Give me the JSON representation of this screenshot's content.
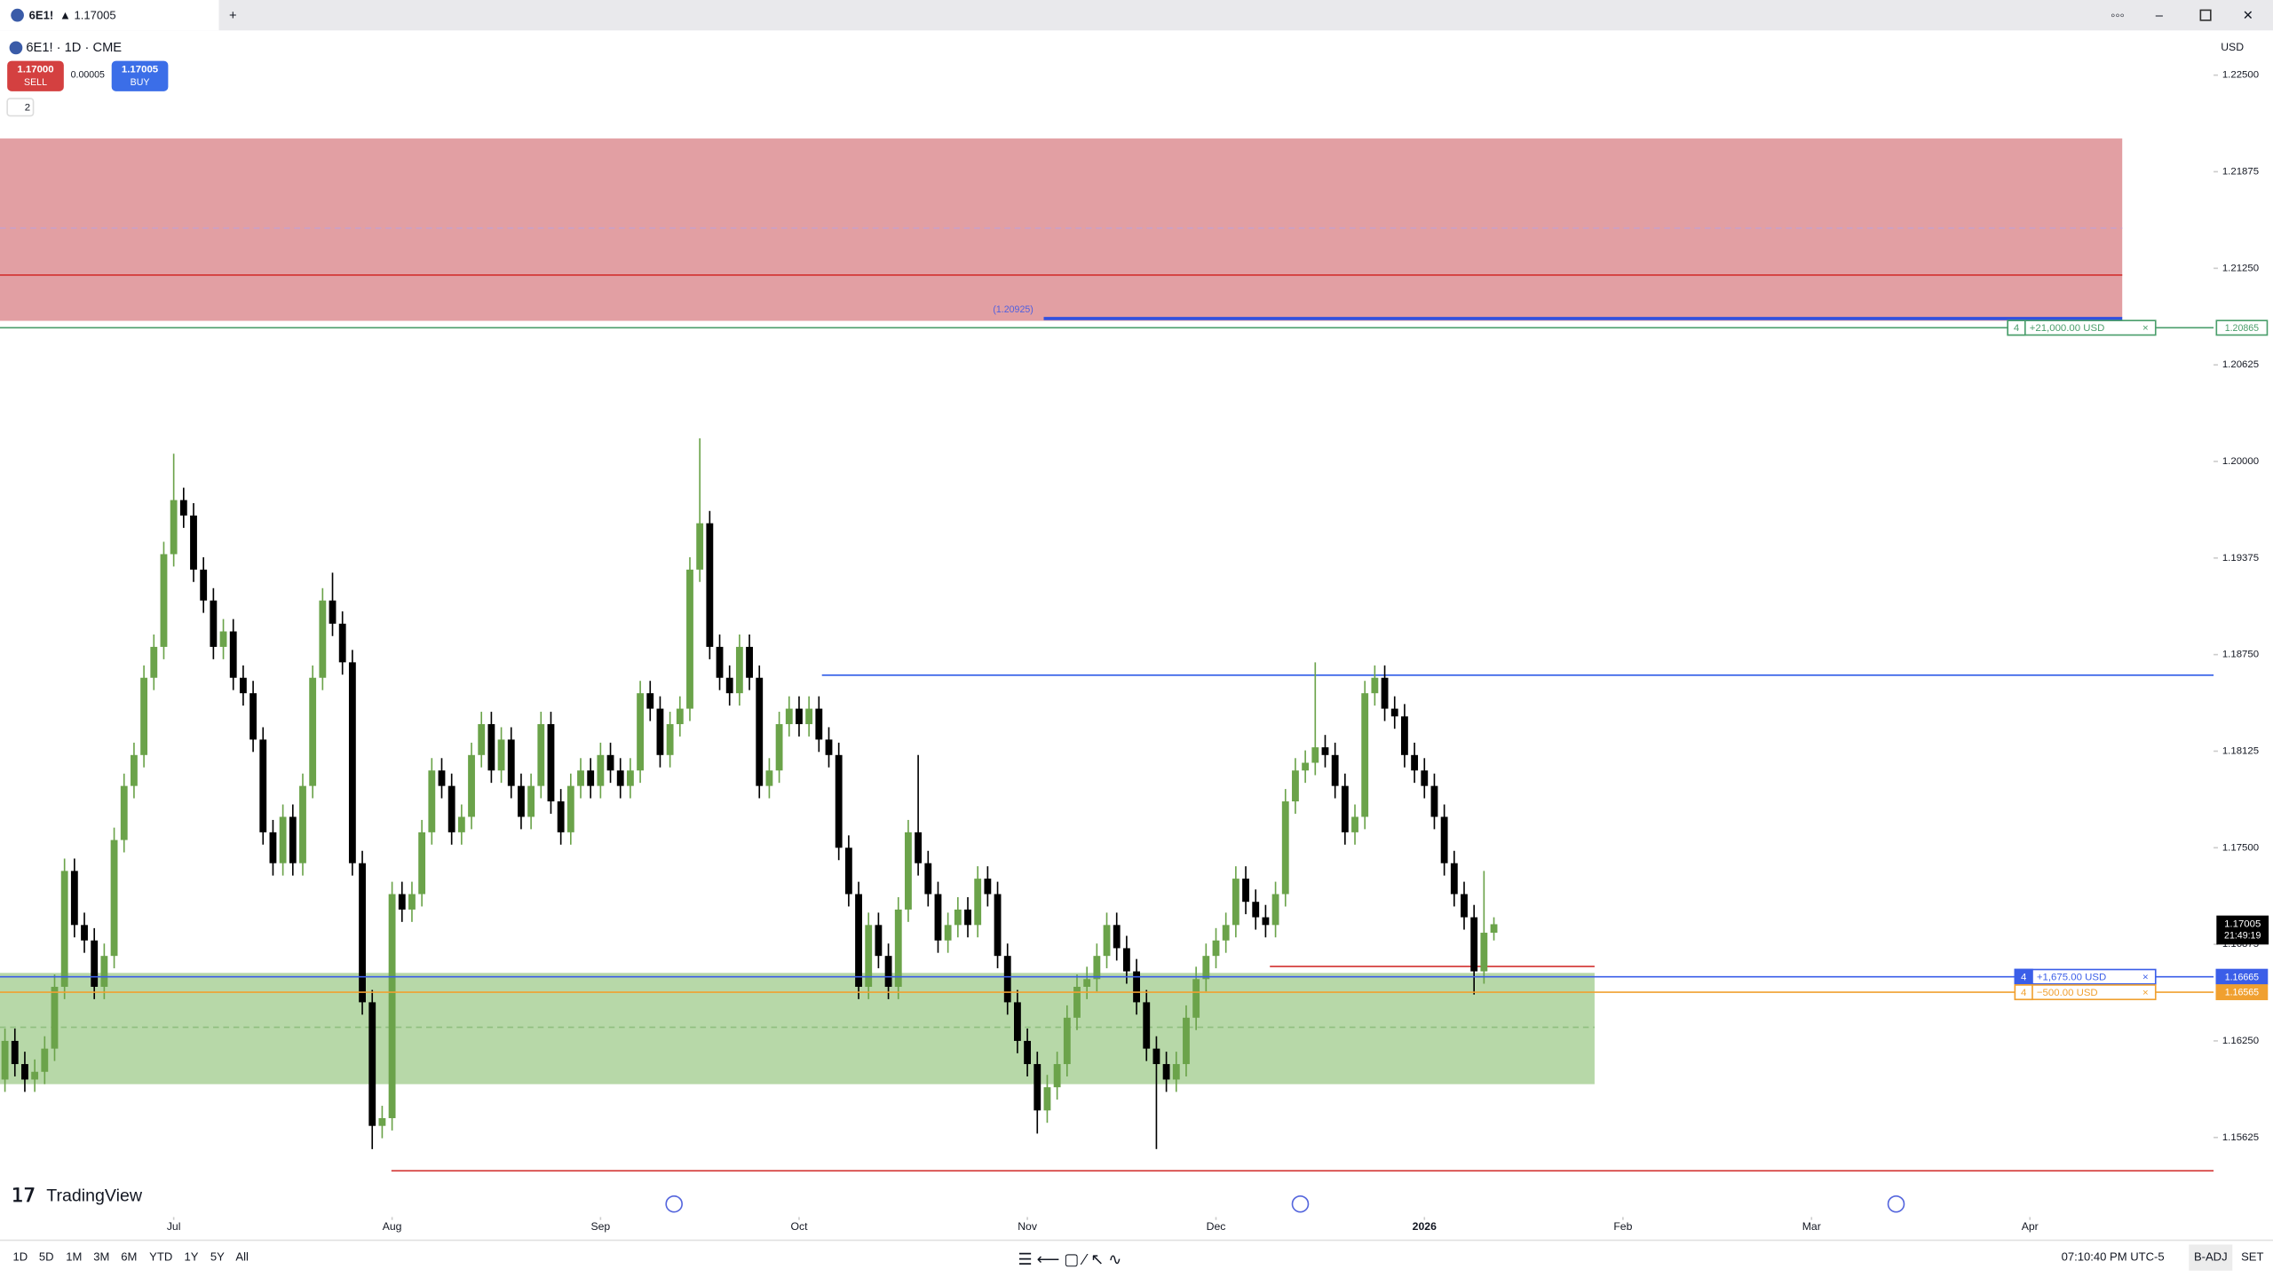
{
  "ui": {
    "tab_symbol": "6E1!",
    "tab_price": "▲ 1.17005",
    "legend": "6E1! · 1D · CME",
    "sell_price": "1.17000",
    "sell": "SELL",
    "spread": "0.00005",
    "buy_price": "1.17005",
    "buy": "BUY",
    "indicators_count": "2",
    "currency": "USD",
    "brand": "TradingView",
    "ranges": [
      "1D",
      "5D",
      "1M",
      "3M",
      "6M",
      "YTD",
      "1Y",
      "5Y",
      "All"
    ],
    "clock": "07:10:40 PM UTC-5",
    "adj": "B-ADJ",
    "session": "SET",
    "countdown": "21:49:19"
  },
  "chart_data": {
    "type": "candlestick",
    "up_color": "#6ba34a",
    "down_color": "#000000",
    "open": [
      1.16,
      1.1625,
      1.161,
      1.16,
      1.1605,
      1.162,
      1.166,
      1.1735,
      1.17,
      1.169,
      1.166,
      1.168,
      1.1755,
      1.179,
      1.181,
      1.186,
      1.188,
      1.194,
      1.1975,
      1.1965,
      1.193,
      1.191,
      1.188,
      1.189,
      1.186,
      1.185,
      1.182,
      1.176,
      1.174,
      1.177,
      1.174,
      1.179,
      1.186,
      1.191,
      1.1895,
      1.187,
      1.174,
      1.165,
      1.157,
      1.1575,
      1.172,
      1.171,
      1.172,
      1.176,
      1.18,
      1.179,
      1.176,
      1.177,
      1.181,
      1.183,
      1.18,
      1.182,
      1.179,
      1.177,
      1.179,
      1.183,
      1.178,
      1.176,
      1.179,
      1.18,
      1.179,
      1.181,
      1.18,
      1.179,
      1.18,
      1.185,
      1.184,
      1.181,
      1.183,
      1.184,
      1.193,
      1.196,
      1.188,
      1.186,
      1.185,
      1.188,
      1.186,
      1.179,
      1.18,
      1.183,
      1.184,
      1.183,
      1.184,
      1.182,
      1.181,
      1.175,
      1.172,
      1.166,
      1.17,
      1.168,
      1.166,
      1.171,
      1.176,
      1.174,
      1.172,
      1.169,
      1.17,
      1.171,
      1.17,
      1.173,
      1.172,
      1.168,
      1.165,
      1.1625,
      1.161,
      1.158,
      1.1595,
      1.161,
      1.164,
      1.166,
      1.1665,
      1.168,
      1.17,
      1.1685,
      1.167,
      1.165,
      1.162,
      1.161,
      1.16,
      1.161,
      1.164,
      1.1665,
      1.168,
      1.169,
      1.17,
      1.173,
      1.1715,
      1.1705,
      1.17,
      1.172,
      1.178,
      1.18,
      1.1805,
      1.1815,
      1.181,
      1.179,
      1.176,
      1.177,
      1.185,
      1.186,
      1.184,
      1.1835,
      1.181,
      1.18,
      1.179,
      1.177,
      1.174,
      1.172,
      1.1705,
      1.167,
      1.1695
    ],
    "high": [
      1.1633,
      1.1633,
      1.1618,
      1.1613,
      1.1628,
      1.1668,
      1.1743,
      1.1743,
      1.1708,
      1.1698,
      1.1688,
      1.1763,
      1.1798,
      1.1818,
      1.1868,
      1.1888,
      1.1948,
      1.2005,
      1.1983,
      1.1973,
      1.1938,
      1.1918,
      1.1898,
      1.1898,
      1.1868,
      1.1858,
      1.1828,
      1.1768,
      1.1778,
      1.1778,
      1.1798,
      1.1868,
      1.1918,
      1.1928,
      1.1903,
      1.1878,
      1.1748,
      1.1658,
      1.1583,
      1.1728,
      1.1728,
      1.1728,
      1.1768,
      1.1808,
      1.1808,
      1.1798,
      1.1778,
      1.1818,
      1.1838,
      1.1838,
      1.1828,
      1.1828,
      1.1798,
      1.1798,
      1.1838,
      1.1838,
      1.1788,
      1.1798,
      1.1808,
      1.1808,
      1.1818,
      1.1818,
      1.1808,
      1.1808,
      1.1858,
      1.1858,
      1.1848,
      1.1838,
      1.1848,
      1.1938,
      1.2015,
      1.1968,
      1.1888,
      1.1868,
      1.1888,
      1.1888,
      1.1868,
      1.1808,
      1.1838,
      1.1848,
      1.1848,
      1.1848,
      1.1848,
      1.1828,
      1.1818,
      1.1758,
      1.1728,
      1.1708,
      1.1708,
      1.1688,
      1.1718,
      1.1768,
      1.181,
      1.1748,
      1.1728,
      1.1708,
      1.1718,
      1.1718,
      1.1738,
      1.1738,
      1.1728,
      1.1688,
      1.1658,
      1.1633,
      1.1618,
      1.1603,
      1.1618,
      1.1648,
      1.1668,
      1.1673,
      1.1688,
      1.1708,
      1.1708,
      1.1693,
      1.1678,
      1.1658,
      1.1628,
      1.1618,
      1.1618,
      1.1648,
      1.1673,
      1.1688,
      1.1698,
      1.1708,
      1.1738,
      1.1738,
      1.1723,
      1.1713,
      1.1728,
      1.1788,
      1.1808,
      1.1813,
      1.187,
      1.1823,
      1.1818,
      1.1798,
      1.1778,
      1.1858,
      1.1868,
      1.1868,
      1.1848,
      1.1843,
      1.1818,
      1.1808,
      1.1798,
      1.1778,
      1.1748,
      1.1728,
      1.1713,
      1.1735,
      1.1705
    ],
    "low": [
      1.1592,
      1.1602,
      1.1592,
      1.1592,
      1.1597,
      1.1612,
      1.1652,
      1.1692,
      1.1682,
      1.1652,
      1.1652,
      1.1672,
      1.1747,
      1.1782,
      1.1802,
      1.1852,
      1.1872,
      1.1932,
      1.1957,
      1.1922,
      1.1902,
      1.1872,
      1.1872,
      1.1852,
      1.1842,
      1.1812,
      1.1752,
      1.1732,
      1.1732,
      1.1732,
      1.1732,
      1.1782,
      1.1852,
      1.1887,
      1.1862,
      1.1732,
      1.1642,
      1.1555,
      1.1562,
      1.1567,
      1.1702,
      1.1702,
      1.1712,
      1.1752,
      1.1782,
      1.1752,
      1.1752,
      1.1762,
      1.1802,
      1.1792,
      1.1792,
      1.1782,
      1.1762,
      1.1762,
      1.1782,
      1.1772,
      1.1752,
      1.1752,
      1.1782,
      1.1782,
      1.1782,
      1.1792,
      1.1782,
      1.1782,
      1.1792,
      1.1832,
      1.1802,
      1.1802,
      1.1822,
      1.1832,
      1.1922,
      1.1872,
      1.1852,
      1.1842,
      1.1842,
      1.1852,
      1.1782,
      1.1782,
      1.1792,
      1.1822,
      1.1822,
      1.1822,
      1.1812,
      1.1802,
      1.1742,
      1.1712,
      1.1652,
      1.1652,
      1.1672,
      1.1652,
      1.1652,
      1.1702,
      1.1732,
      1.1712,
      1.1682,
      1.1682,
      1.1692,
      1.1692,
      1.1692,
      1.1712,
      1.1672,
      1.1642,
      1.1617,
      1.1602,
      1.1565,
      1.1572,
      1.1587,
      1.1602,
      1.1632,
      1.1652,
      1.1657,
      1.1672,
      1.1677,
      1.1662,
      1.1642,
      1.1612,
      1.1555,
      1.1592,
      1.1592,
      1.1602,
      1.1632,
      1.1657,
      1.1672,
      1.1682,
      1.1692,
      1.1707,
      1.1697,
      1.1692,
      1.1692,
      1.1712,
      1.1772,
      1.1792,
      1.1797,
      1.1802,
      1.1782,
      1.1752,
      1.1752,
      1.1762,
      1.1842,
      1.1832,
      1.1827,
      1.1802,
      1.1792,
      1.1782,
      1.1762,
      1.1732,
      1.1712,
      1.1697,
      1.1655,
      1.1662,
      1.169
    ],
    "close": [
      1.1625,
      1.161,
      1.16,
      1.1605,
      1.162,
      1.166,
      1.1735,
      1.17,
      1.169,
      1.166,
      1.168,
      1.1755,
      1.179,
      1.181,
      1.186,
      1.188,
      1.194,
      1.1975,
      1.1965,
      1.193,
      1.191,
      1.188,
      1.189,
      1.186,
      1.185,
      1.182,
      1.176,
      1.174,
      1.177,
      1.174,
      1.179,
      1.186,
      1.191,
      1.1895,
      1.187,
      1.174,
      1.165,
      1.157,
      1.1575,
      1.172,
      1.171,
      1.172,
      1.176,
      1.18,
      1.179,
      1.176,
      1.177,
      1.181,
      1.183,
      1.18,
      1.182,
      1.179,
      1.177,
      1.179,
      1.183,
      1.178,
      1.176,
      1.179,
      1.18,
      1.179,
      1.181,
      1.18,
      1.179,
      1.18,
      1.185,
      1.184,
      1.181,
      1.183,
      1.184,
      1.193,
      1.196,
      1.188,
      1.186,
      1.185,
      1.188,
      1.186,
      1.179,
      1.18,
      1.183,
      1.184,
      1.183,
      1.184,
      1.182,
      1.181,
      1.175,
      1.172,
      1.166,
      1.17,
      1.168,
      1.166,
      1.171,
      1.176,
      1.174,
      1.172,
      1.169,
      1.17,
      1.171,
      1.17,
      1.173,
      1.172,
      1.168,
      1.165,
      1.1625,
      1.161,
      1.158,
      1.1595,
      1.161,
      1.164,
      1.166,
      1.1665,
      1.168,
      1.17,
      1.1685,
      1.167,
      1.165,
      1.162,
      1.161,
      1.16,
      1.161,
      1.164,
      1.1665,
      1.168,
      1.169,
      1.17,
      1.173,
      1.1715,
      1.1705,
      1.17,
      1.172,
      1.178,
      1.18,
      1.1805,
      1.1815,
      1.181,
      1.179,
      1.176,
      1.177,
      1.185,
      1.186,
      1.184,
      1.1835,
      1.181,
      1.18,
      1.179,
      1.177,
      1.174,
      1.172,
      1.1705,
      1.167,
      1.1695,
      1.17005
    ],
    "ylim": [
      1.1511,
      1.2278
    ],
    "yticks": [
      {
        "value": 1.225,
        "label": "1.22500"
      },
      {
        "value": 1.21875,
        "label": "1.21875"
      },
      {
        "value": 1.2125,
        "label": "1.21250"
      },
      {
        "value": 1.20625,
        "label": "1.20625"
      },
      {
        "value": 1.2,
        "label": "1.20000"
      },
      {
        "value": 1.19375,
        "label": "1.19375"
      },
      {
        "value": 1.1875,
        "label": "1.18750"
      },
      {
        "value": 1.18125,
        "label": "1.18125"
      },
      {
        "value": 1.175,
        "label": "1.17500"
      },
      {
        "value": 1.16875,
        "label": "1.16875"
      },
      {
        "value": 1.1625,
        "label": "1.16250"
      },
      {
        "value": 1.15625,
        "label": "1.15625"
      }
    ],
    "xlim": [
      -0.5,
      222.5
    ],
    "xticks": [
      {
        "value": 17,
        "label": "Jul"
      },
      {
        "value": 39,
        "label": "Aug"
      },
      {
        "value": 60,
        "label": "Sep"
      },
      {
        "value": 80,
        "label": "Oct"
      },
      {
        "value": 103,
        "label": "Nov"
      },
      {
        "value": 122,
        "label": "Dec"
      },
      {
        "value": 143,
        "label": "2026"
      },
      {
        "value": 163,
        "label": "Feb"
      },
      {
        "value": 182,
        "label": "Mar"
      },
      {
        "value": 204,
        "label": "Apr"
      }
    ],
    "last_price": 1.17005,
    "zones": [
      {
        "from": 1.2209,
        "to": 1.2091,
        "color": "#e29fa3"
      },
      {
        "from": 1.1669,
        "to": 1.1597,
        "color": "#b7d8a8"
      }
    ],
    "levels": [
      {
        "value": 1.21206,
        "color": "#d2302f"
      },
      {
        "value": 1.2151,
        "color": "#c9a0c8",
        "dashed": true
      },
      {
        "value": 1.20925,
        "color": "#3050e0"
      },
      {
        "value": 1.18617,
        "color": "#2f5be8"
      },
      {
        "value": 1.16732,
        "color": "#d2302f"
      },
      {
        "value": 1.16338,
        "color": "#8fbf7f",
        "dashed": true
      },
      {
        "value": 1.15409,
        "color": "#d2302f"
      }
    ],
    "level_label": {
      "value": 1.20925,
      "label": "(1.20925)"
    },
    "positions": [
      {
        "price": 1.20865,
        "qty": 4,
        "pnl": "+21,000.00 USD",
        "color": "#4a9e6b"
      },
      {
        "price": 1.16665,
        "qty": 4,
        "pnl": "+1,675.00 USD",
        "color": "#3b5ee8"
      },
      {
        "price": 1.16565,
        "qty": 4,
        "pnl": "−500.00 USD",
        "color": "#f0a030"
      }
    ]
  }
}
